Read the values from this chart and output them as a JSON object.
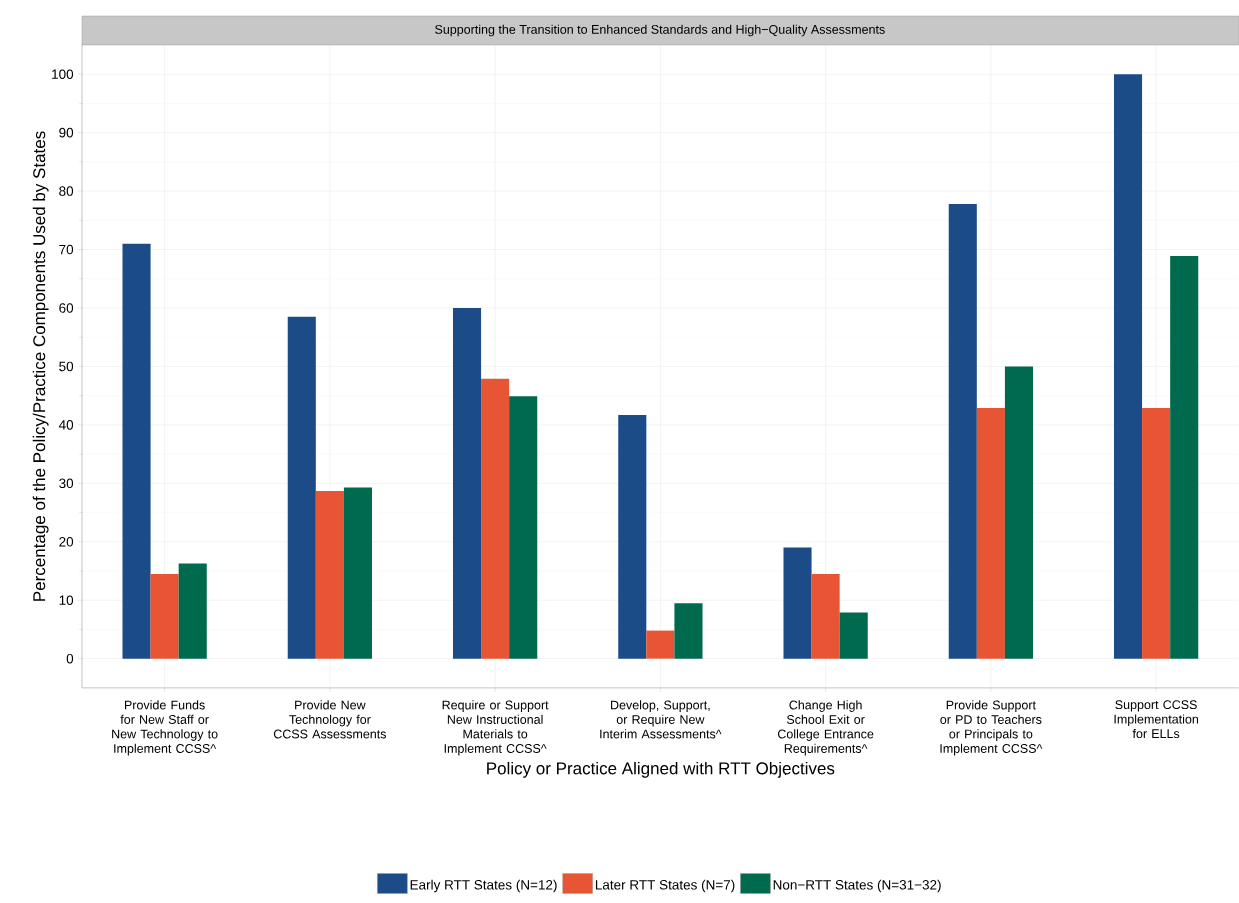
{
  "chart_data": {
    "type": "bar",
    "title": "Supporting the Transition to Enhanced Standards and High−Quality Assessments",
    "xlabel": "Policy or Practice Aligned with RTT Objectives",
    "ylabel": "Percentage of the Policy/Practice Components Used by States",
    "categories": [
      "Provide Funds for New Staff or New Technology to Implement CCSS^",
      "Provide New Technology for CCSS Assessments",
      "Require or Support New Instructional Materials to Implement CCSS^",
      "Develop, Support, or Require New Interim Assessments^",
      "Change High School Exit or College Entrance Requirements^",
      "Provide Support or PD to Teachers or Principals to Implement CCSS^",
      "Support CCSS Implementation for ELLs"
    ],
    "series": [
      {
        "name": "Early RTT States (N=12)",
        "color": "#1b4c87",
        "values": [
          71,
          58.5,
          60,
          41.7,
          19,
          77.8,
          100
        ]
      },
      {
        "name": "Later RTT States (N=7)",
        "color": "#e85535",
        "values": [
          14.5,
          28.7,
          47.9,
          4.8,
          14.5,
          42.9,
          42.9
        ]
      },
      {
        "name": "Non−RTT States (N=31−32)",
        "color": "#006a4e",
        "values": [
          16.3,
          29.3,
          44.9,
          9.5,
          7.9,
          50,
          68.9
        ]
      }
    ],
    "ylim": [
      -5,
      105
    ],
    "yticks": [
      0,
      10,
      20,
      30,
      40,
      50,
      60,
      70,
      80,
      90,
      100
    ],
    "grid": true,
    "legend": "bottom"
  }
}
